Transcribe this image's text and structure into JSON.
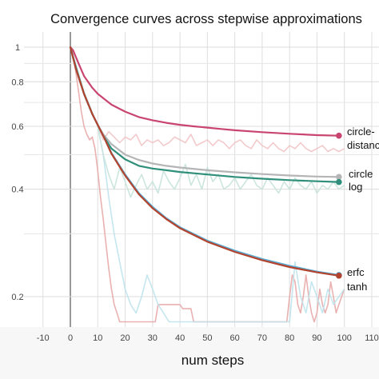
{
  "chart_data": {
    "type": "line",
    "title": "Convergence curves across stepwise approximations",
    "xlabel": "num steps",
    "ylabel": "",
    "xlim": [
      -15,
      110
    ],
    "ylim": [
      0.17,
      1.05
    ],
    "y_scale": "log",
    "grid": true,
    "x_ticks": [
      "-10",
      "0",
      "10",
      "20",
      "30",
      "40",
      "50",
      "60",
      "70",
      "80",
      "90",
      "100",
      "110"
    ],
    "y_ticks": [
      "1",
      "0.8",
      "0.6",
      "0.4",
      "0.2"
    ],
    "series": [
      {
        "name": "circle-distance",
        "label_lines": [
          "circle-",
          "distance"
        ],
        "color": "#c9456f",
        "x": [
          0,
          1,
          3,
          5,
          8,
          10,
          12,
          15,
          20,
          25,
          30,
          35,
          40,
          45,
          50,
          55,
          60,
          70,
          80,
          90,
          98
        ],
        "values": [
          1.0,
          0.98,
          0.9,
          0.83,
          0.77,
          0.74,
          0.72,
          0.69,
          0.66,
          0.637,
          0.624,
          0.614,
          0.606,
          0.6,
          0.595,
          0.59,
          0.585,
          0.578,
          0.572,
          0.567,
          0.565
        ]
      },
      {
        "name": "circle",
        "label_lines": [
          "circle"
        ],
        "color": "#b5b5b8",
        "x": [
          0,
          2,
          5,
          8,
          10,
          12,
          15,
          20,
          25,
          30,
          35,
          40,
          50,
          60,
          70,
          80,
          90,
          98
        ],
        "values": [
          1.0,
          0.88,
          0.74,
          0.65,
          0.605,
          0.57,
          0.535,
          0.5,
          0.483,
          0.472,
          0.465,
          0.46,
          0.452,
          0.446,
          0.441,
          0.437,
          0.434,
          0.433
        ]
      },
      {
        "name": "log",
        "label_lines": [
          "log"
        ],
        "color": "#2f8f7a",
        "x": [
          0,
          2,
          5,
          8,
          10,
          12,
          15,
          20,
          25,
          30,
          35,
          40,
          50,
          60,
          70,
          80,
          90,
          98
        ],
        "values": [
          1.0,
          0.88,
          0.74,
          0.65,
          0.605,
          0.565,
          0.52,
          0.485,
          0.465,
          0.457,
          0.452,
          0.447,
          0.44,
          0.433,
          0.428,
          0.424,
          0.421,
          0.419
        ]
      },
      {
        "name": "erfc",
        "label_lines": [
          "erfc"
        ],
        "color": "#5aaed6",
        "x": [
          0,
          2,
          5,
          8,
          10,
          12,
          15,
          20,
          25,
          30,
          35,
          40,
          50,
          60,
          70,
          80,
          90,
          98
        ],
        "values": [
          1.0,
          0.87,
          0.74,
          0.65,
          0.605,
          0.565,
          0.505,
          0.44,
          0.39,
          0.357,
          0.332,
          0.313,
          0.287,
          0.269,
          0.255,
          0.244,
          0.235,
          0.23
        ]
      },
      {
        "name": "tanh",
        "label_lines": [
          "tanh"
        ],
        "color": "#b2432e",
        "x": [
          0,
          2,
          5,
          8,
          10,
          12,
          15,
          20,
          25,
          30,
          35,
          40,
          50,
          60,
          70,
          80,
          90,
          98
        ],
        "values": [
          1.0,
          0.87,
          0.74,
          0.65,
          0.605,
          0.565,
          0.503,
          0.437,
          0.387,
          0.354,
          0.33,
          0.311,
          0.285,
          0.267,
          0.253,
          0.242,
          0.234,
          0.229
        ]
      }
    ],
    "noisy_series": [
      {
        "color": "#e8a9a8",
        "x": [
          0,
          1,
          2,
          3,
          4,
          5,
          6,
          7,
          8,
          9,
          10,
          11,
          12,
          13,
          14,
          15,
          16,
          17,
          18,
          19,
          20,
          21,
          22,
          23,
          24,
          25,
          26,
          27,
          28,
          29,
          30,
          31,
          32,
          33,
          34,
          35,
          36,
          37,
          38,
          39,
          40,
          41,
          42,
          43,
          44,
          45,
          46,
          47,
          48,
          49,
          50,
          51,
          52,
          53,
          54,
          55,
          56,
          57,
          58,
          59,
          60,
          61,
          62,
          63,
          64,
          65,
          66,
          67,
          68,
          69,
          70,
          71,
          72,
          73,
          74,
          75,
          76,
          77,
          78,
          79,
          80,
          81,
          82,
          83,
          84,
          85,
          86,
          87,
          88,
          89,
          90,
          91,
          92,
          93,
          94,
          95,
          96,
          97,
          98,
          99,
          100
        ],
        "values": [
          1.0,
          0.95,
          0.85,
          0.75,
          0.66,
          0.6,
          0.57,
          0.55,
          0.56,
          0.52,
          0.45,
          0.38,
          0.33,
          0.28,
          0.24,
          0.21,
          0.19,
          0.18,
          0.17,
          0.17,
          0.17,
          0.17,
          0.17,
          0.17,
          0.17,
          0.17,
          0.17,
          0.17,
          0.17,
          0.17,
          0.17,
          0.17,
          0.19,
          0.19,
          0.19,
          0.19,
          0.19,
          0.19,
          0.19,
          0.19,
          0.19,
          0.185,
          0.185,
          0.185,
          0.185,
          0.17,
          0.17,
          0.17,
          0.17,
          0.17,
          0.17,
          0.17,
          0.17,
          0.17,
          0.17,
          0.17,
          0.17,
          0.17,
          0.17,
          0.17,
          0.17,
          0.17,
          0.17,
          0.17,
          0.17,
          0.17,
          0.17,
          0.17,
          0.17,
          0.17,
          0.17,
          0.17,
          0.17,
          0.17,
          0.17,
          0.17,
          0.17,
          0.17,
          0.17,
          0.17,
          0.2,
          0.23,
          0.22,
          0.19,
          0.18,
          0.2,
          0.23,
          0.2,
          0.18,
          0.17,
          0.18,
          0.21,
          0.19,
          0.18,
          0.19,
          0.22,
          0.2,
          0.18,
          0.19,
          0.2,
          0.21
        ]
      },
      {
        "color": "#bfe3ec",
        "x": [
          0,
          5,
          10,
          12,
          14,
          16,
          18,
          20,
          22,
          24,
          26,
          28,
          30,
          32,
          34,
          36,
          38,
          40,
          42,
          44,
          46,
          48,
          50,
          52,
          54,
          56,
          58,
          60,
          62,
          64,
          66,
          68,
          70,
          72,
          74,
          76,
          78,
          80,
          82,
          84,
          86,
          88,
          90,
          92,
          94,
          96,
          98,
          100
        ],
        "values": [
          1.0,
          0.75,
          0.6,
          0.5,
          0.38,
          0.3,
          0.25,
          0.21,
          0.19,
          0.18,
          0.2,
          0.23,
          0.21,
          0.19,
          0.18,
          0.17,
          0.17,
          0.17,
          0.17,
          0.17,
          0.17,
          0.17,
          0.17,
          0.17,
          0.17,
          0.17,
          0.17,
          0.17,
          0.17,
          0.17,
          0.17,
          0.17,
          0.17,
          0.17,
          0.17,
          0.17,
          0.17,
          0.17,
          0.25,
          0.2,
          0.18,
          0.22,
          0.2,
          0.18,
          0.21,
          0.19,
          0.2,
          0.21
        ]
      },
      {
        "color": "#f2c4c6",
        "x": [
          10,
          12,
          14,
          16,
          18,
          20,
          22,
          24,
          26,
          28,
          30,
          32,
          34,
          36,
          38,
          40,
          42,
          44,
          46,
          48,
          50,
          52,
          54,
          56,
          58,
          60,
          62,
          64,
          66,
          68,
          70,
          72,
          74,
          76,
          78,
          80,
          82,
          84,
          86,
          88,
          90,
          92,
          94,
          96,
          98,
          100
        ],
        "values": [
          0.6,
          0.55,
          0.58,
          0.56,
          0.54,
          0.56,
          0.55,
          0.57,
          0.53,
          0.55,
          0.54,
          0.55,
          0.53,
          0.54,
          0.56,
          0.55,
          0.54,
          0.57,
          0.53,
          0.54,
          0.55,
          0.53,
          0.55,
          0.54,
          0.52,
          0.54,
          0.55,
          0.53,
          0.52,
          0.55,
          0.53,
          0.52,
          0.54,
          0.52,
          0.51,
          0.53,
          0.52,
          0.54,
          0.52,
          0.51,
          0.52,
          0.53,
          0.51,
          0.52,
          0.51,
          0.52
        ]
      },
      {
        "color": "#c6e3dc",
        "x": [
          10,
          12,
          14,
          16,
          18,
          20,
          22,
          24,
          26,
          28,
          30,
          32,
          34,
          36,
          38,
          40,
          42,
          44,
          46,
          48,
          50,
          52,
          54,
          56,
          58,
          60,
          62,
          64,
          66,
          68,
          70,
          72,
          74,
          76,
          78,
          80,
          82,
          84,
          86,
          88,
          90,
          92,
          94,
          96,
          98,
          100
        ],
        "values": [
          0.6,
          0.5,
          0.44,
          0.4,
          0.46,
          0.42,
          0.38,
          0.41,
          0.44,
          0.4,
          0.42,
          0.39,
          0.45,
          0.42,
          0.4,
          0.43,
          0.47,
          0.41,
          0.44,
          0.4,
          0.46,
          0.42,
          0.44,
          0.4,
          0.41,
          0.43,
          0.4,
          0.42,
          0.44,
          0.41,
          0.4,
          0.43,
          0.41,
          0.39,
          0.42,
          0.4,
          0.43,
          0.41,
          0.4,
          0.42,
          0.39,
          0.41,
          0.4,
          0.42,
          0.4,
          0.41
        ]
      }
    ]
  }
}
